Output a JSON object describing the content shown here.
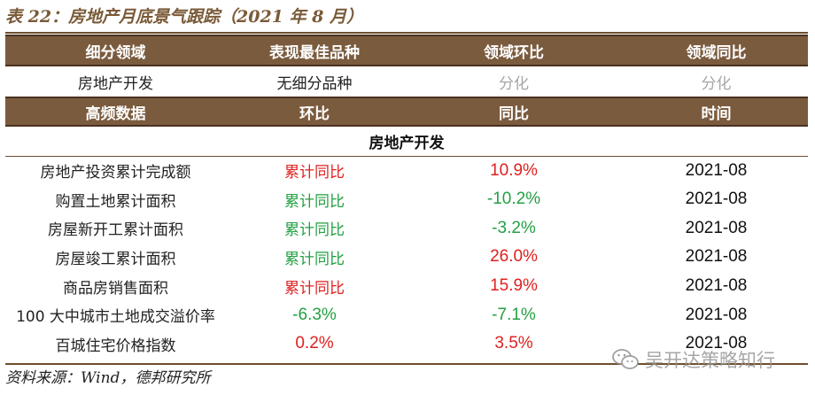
{
  "title": "表 22：房地产月底景气跟踪（2021 年 8 月）",
  "header1": [
    "细分领域",
    "表现最佳品种",
    "领域环比",
    "领域同比"
  ],
  "row1": [
    "房地产开发",
    "无细分品种",
    "分化",
    "分化"
  ],
  "header2": [
    "高频数据",
    "环比",
    "同比",
    "时间"
  ],
  "section": "房地产开发",
  "rows": [
    {
      "name": "房地产投资累计完成额",
      "mom": "累计同比",
      "yoy": "10.9%",
      "date": "2021-08"
    },
    {
      "name": "购置土地累计面积",
      "mom": "累计同比",
      "yoy": "-10.2%",
      "date": "2021-08"
    },
    {
      "name": "房屋新开工累计面积",
      "mom": "累计同比",
      "yoy": "-3.2%",
      "date": "2021-08"
    },
    {
      "name": "房屋竣工累计面积",
      "mom": "累计同比",
      "yoy": "26.0%",
      "date": "2021-08"
    },
    {
      "name": "商品房销售面积",
      "mom": "累计同比",
      "yoy": "15.9%",
      "date": "2021-08"
    },
    {
      "name": "100 大中城市土地成交溢价率",
      "mom": "-6.3%",
      "yoy": "-7.1%",
      "date": "2021-08"
    },
    {
      "name": "百城住宅价格指数",
      "mom": "0.2%",
      "yoy": "3.5%",
      "date": "2021-08"
    }
  ],
  "colors": {
    "header_bg": "#7b5b3e",
    "title": "#7a5a38",
    "positive": "#e02020",
    "negative": "#23a043",
    "muted": "#a6a6a6"
  },
  "source": "资料来源：Wind，德邦研究所",
  "watermark": {
    "icon": "wechat-icon",
    "text": "吴开达策略知行"
  }
}
